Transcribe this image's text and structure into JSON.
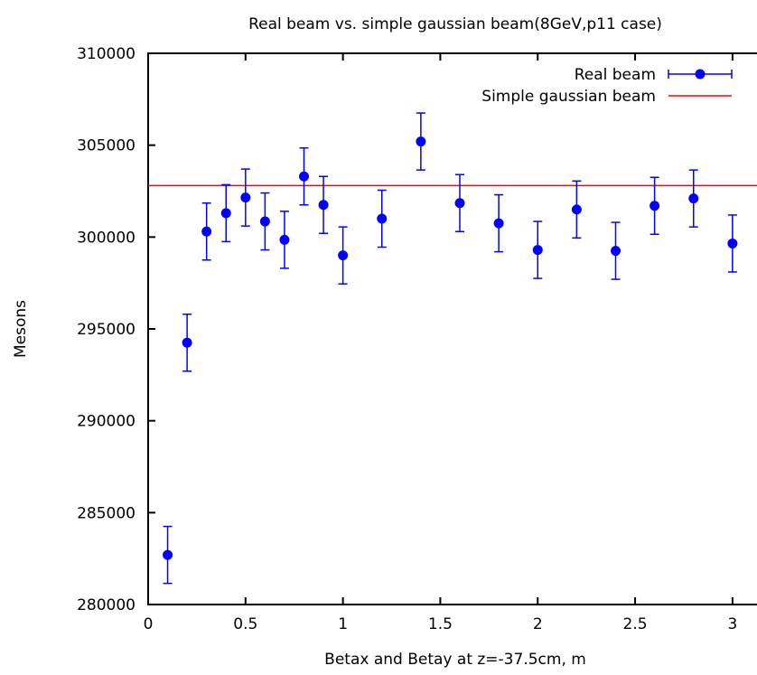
{
  "chart_data": {
    "type": "scatter",
    "title": "Real beam vs. simple gaussian beam(8GeV,p11 case)",
    "xlabel": "Betax and Betay at z=-37.5cm, m",
    "ylabel": "Mesons",
    "xlim": [
      0,
      3.2
    ],
    "ylim": [
      280000,
      310000
    ],
    "xticks": [
      0,
      0.5,
      1,
      1.5,
      2,
      2.5,
      3
    ],
    "xtick_labels": [
      "0",
      "0.5",
      "1",
      "1.5",
      "2",
      "2.5",
      "3"
    ],
    "yticks": [
      280000,
      285000,
      290000,
      295000,
      300000,
      305000,
      310000
    ],
    "ytick_labels": [
      "280000",
      "285000",
      "290000",
      "295000",
      "300000",
      "305000",
      "310000"
    ],
    "grid": false,
    "legend_position": "top-right",
    "series": [
      {
        "name": "Real beam",
        "kind": "points-with-errorbars",
        "color": "#0000ff",
        "x": [
          0.1,
          0.2,
          0.3,
          0.4,
          0.5,
          0.6,
          0.7,
          0.8,
          0.9,
          1.0,
          1.2,
          1.4,
          1.6,
          1.8,
          2.0,
          2.2,
          2.4,
          2.6,
          2.8,
          3.0
        ],
        "y": [
          282700,
          294250,
          300300,
          301300,
          302150,
          300850,
          299850,
          303300,
          301750,
          299000,
          301000,
          305200,
          301850,
          300750,
          299300,
          301500,
          299250,
          301700,
          302100,
          299650
        ],
        "yerr": [
          1550,
          1550,
          1550,
          1550,
          1550,
          1550,
          1550,
          1550,
          1550,
          1550,
          1550,
          1550,
          1550,
          1550,
          1550,
          1550,
          1550,
          1550,
          1550,
          1550
        ]
      },
      {
        "name": "Simple gaussian beam",
        "kind": "horizontal-line",
        "color": "#ff0000",
        "y": 302800
      }
    ]
  }
}
